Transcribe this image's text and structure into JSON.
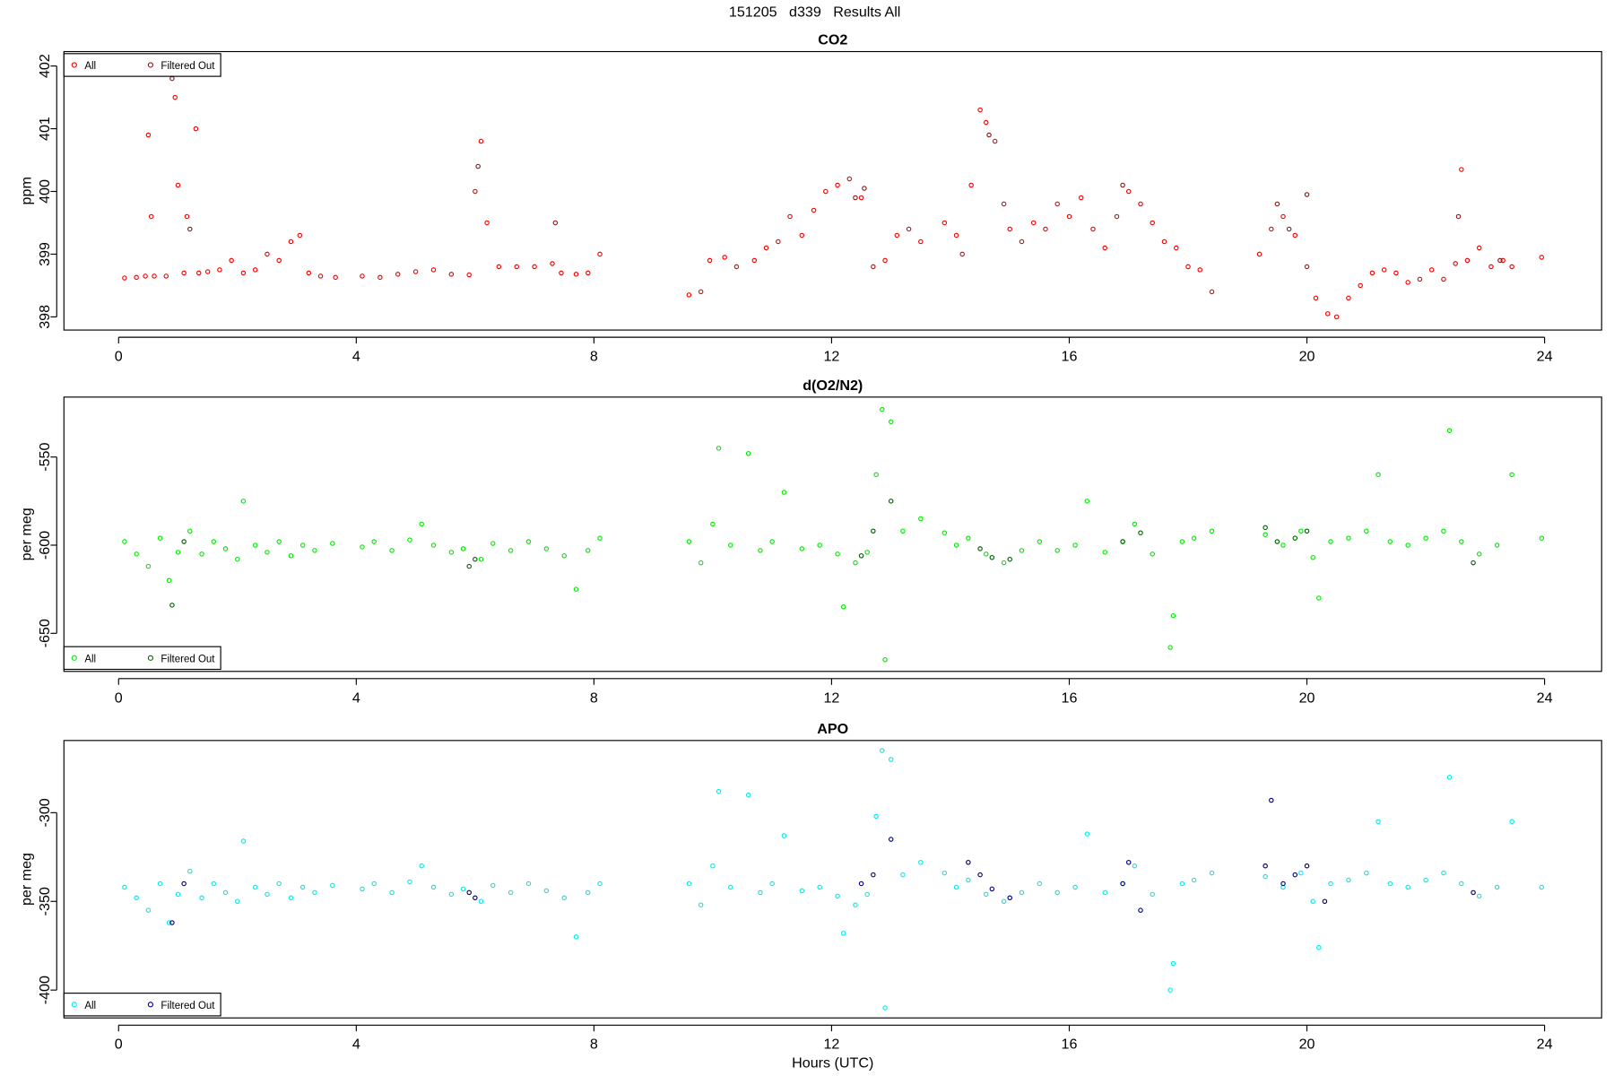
{
  "title": "151205   d339   Results All",
  "chart_data": [
    {
      "type": "scatter",
      "title": "CO2",
      "ylabel": "ppm",
      "legend": "top-left",
      "xlim": [
        -0.92,
        24.96
      ],
      "ylim": [
        397.79,
        402.23
      ],
      "xticks": [
        0,
        4,
        8,
        12,
        16,
        20,
        24
      ],
      "yticks": [
        398,
        399,
        400,
        401,
        402
      ],
      "series": [
        {
          "name": "All",
          "color": "#ff0000",
          "x": [
            0.1,
            0.3,
            0.45,
            0.5,
            0.55,
            0.6,
            0.8,
            0.95,
            1.0,
            1.1,
            1.15,
            1.3,
            1.35,
            1.5,
            1.7,
            1.9,
            2.1,
            2.3,
            2.5,
            2.7,
            2.9,
            3.05,
            3.2,
            3.4,
            3.65,
            4.1,
            4.4,
            4.7,
            5.0,
            5.3,
            5.6,
            5.9,
            6.0,
            6.1,
            6.2,
            6.4,
            6.7,
            7.0,
            7.3,
            7.45,
            7.7,
            7.9,
            8.1,
            9.6,
            9.8,
            9.95,
            10.2,
            10.4,
            10.7,
            10.9,
            11.1,
            11.3,
            11.5,
            11.7,
            11.9,
            12.1,
            12.3,
            12.5,
            12.7,
            12.9,
            13.1,
            13.3,
            13.5,
            13.9,
            14.1,
            14.2,
            14.35,
            14.5,
            14.6,
            14.75,
            14.9,
            15.0,
            15.2,
            15.4,
            15.6,
            15.8,
            16.0,
            16.2,
            16.4,
            16.6,
            16.8,
            17.0,
            17.2,
            17.4,
            17.6,
            17.8,
            18.0,
            18.2,
            18.4,
            19.2,
            19.4,
            19.6,
            19.8,
            20.0,
            20.15,
            20.35,
            20.5,
            20.7,
            20.9,
            21.1,
            21.3,
            21.5,
            21.7,
            21.9,
            22.1,
            22.3,
            22.5,
            22.6,
            22.7,
            22.9,
            23.1,
            23.3,
            23.45,
            23.95
          ],
          "values": [
            398.62,
            398.63,
            398.65,
            400.9,
            399.6,
            398.65,
            398.65,
            401.5,
            400.1,
            398.7,
            399.6,
            401.0,
            398.7,
            398.72,
            398.75,
            398.9,
            398.7,
            398.75,
            399.0,
            398.9,
            399.2,
            399.3,
            398.7,
            398.65,
            398.63,
            398.65,
            398.63,
            398.68,
            398.72,
            398.75,
            398.68,
            398.67,
            400.0,
            400.8,
            399.5,
            398.8,
            398.8,
            398.8,
            398.85,
            398.7,
            398.68,
            398.7,
            399.0,
            398.35,
            398.4,
            398.9,
            398.95,
            398.8,
            398.9,
            399.1,
            399.2,
            399.6,
            399.3,
            399.7,
            400.0,
            400.1,
            400.2,
            399.9,
            398.8,
            398.9,
            399.3,
            399.4,
            399.2,
            399.5,
            399.3,
            399.0,
            400.1,
            401.3,
            401.1,
            400.8,
            399.8,
            399.4,
            399.2,
            399.5,
            399.4,
            399.8,
            399.6,
            399.9,
            399.4,
            399.1,
            399.6,
            400.0,
            399.8,
            399.5,
            399.2,
            399.1,
            398.8,
            398.75,
            398.4,
            399.0,
            399.4,
            399.6,
            399.3,
            398.8,
            398.3,
            398.05,
            398.0,
            398.3,
            398.5,
            398.7,
            398.75,
            398.7,
            398.55,
            398.6,
            398.75,
            398.6,
            398.85,
            400.35,
            398.9,
            399.1,
            398.8,
            398.9,
            398.8,
            398.95
          ]
        },
        {
          "name": "Filtered Out",
          "color": "#8b1a1a",
          "x": [
            0.9,
            1.2,
            6.05,
            7.35,
            12.4,
            12.55,
            14.65,
            16.9,
            19.5,
            19.7,
            20.0,
            22.55,
            23.25
          ],
          "values": [
            401.8,
            399.4,
            400.4,
            399.5,
            399.9,
            400.05,
            400.9,
            400.1,
            399.8,
            399.4,
            399.95,
            399.6,
            398.9
          ]
        }
      ]
    },
    {
      "type": "scatter",
      "title": "d(O2/N2)",
      "ylabel": "per meg",
      "legend": "bottom-left",
      "xlim": [
        -0.92,
        24.96
      ],
      "ylim": [
        -671.6,
        -516
      ],
      "xticks": [
        0,
        4,
        8,
        12,
        16,
        20,
        24
      ],
      "yticks": [
        -650,
        -600,
        -550
      ],
      "series": [
        {
          "name": "All",
          "color": "#00ee00",
          "x": [
            0.1,
            0.3,
            0.5,
            0.7,
            0.85,
            1.0,
            1.2,
            1.4,
            1.6,
            1.8,
            2.0,
            2.1,
            2.3,
            2.5,
            2.7,
            2.9,
            3.1,
            3.3,
            3.6,
            4.1,
            4.3,
            4.6,
            4.9,
            5.1,
            5.3,
            5.6,
            5.8,
            6.1,
            6.3,
            6.6,
            6.9,
            7.2,
            7.5,
            7.7,
            7.9,
            8.1,
            9.6,
            9.8,
            10.0,
            10.1,
            10.3,
            10.6,
            10.8,
            11.0,
            11.2,
            11.5,
            11.8,
            12.1,
            12.2,
            12.4,
            12.6,
            12.75,
            12.85,
            12.9,
            13.0,
            13.2,
            13.5,
            13.9,
            14.1,
            14.3,
            14.6,
            14.9,
            15.2,
            15.5,
            15.8,
            16.1,
            16.3,
            16.6,
            16.9,
            17.1,
            17.4,
            17.7,
            17.75,
            17.9,
            18.1,
            18.4,
            19.3,
            19.6,
            19.9,
            20.1,
            20.2,
            20.4,
            20.7,
            21.0,
            21.2,
            21.4,
            21.7,
            22.0,
            22.3,
            22.4,
            22.6,
            22.9,
            23.2,
            23.45,
            23.95
          ],
          "values": [
            -598,
            -605,
            -612,
            -596,
            -620,
            -604,
            -592,
            -605,
            -598,
            -602,
            -608,
            -575,
            -600,
            -604,
            -598,
            -606,
            -600,
            -603,
            -599,
            -601,
            -598,
            -603,
            -597,
            -588,
            -600,
            -604,
            -602,
            -608,
            -599,
            -603,
            -598,
            -602,
            -606,
            -625,
            -603,
            -596,
            -598,
            -610,
            -588,
            -545,
            -600,
            -548,
            -603,
            -598,
            -570,
            -602,
            -600,
            -605,
            -635,
            -610,
            -604,
            -560,
            -523,
            -665,
            -530,
            -592,
            -585,
            -593,
            -600,
            -596,
            -605,
            -610,
            -603,
            -598,
            -603,
            -600,
            -575,
            -604,
            -598,
            -588,
            -605,
            -658,
            -640,
            -598,
            -596,
            -592,
            -594,
            -600,
            -592,
            -607,
            -630,
            -598,
            -596,
            -592,
            -560,
            -598,
            -600,
            -596,
            -592,
            -535,
            -598,
            -605,
            -600,
            -560,
            -596
          ]
        },
        {
          "name": "Filtered Out",
          "color": "#006400",
          "x": [
            0.9,
            1.1,
            5.9,
            6.0,
            12.5,
            12.7,
            13.0,
            14.5,
            14.7,
            15.0,
            16.9,
            17.2,
            19.3,
            19.5,
            19.8,
            20.0,
            22.8
          ],
          "values": [
            -634,
            -598,
            -612,
            -608,
            -606,
            -592,
            -575,
            -602,
            -607,
            -608,
            -598,
            -593,
            -590,
            -598,
            -596,
            -592,
            -610
          ]
        }
      ]
    },
    {
      "type": "scatter",
      "title": "APO",
      "ylabel": "per meg",
      "xlabel": "Hours (UTC)",
      "legend": "bottom-left",
      "xlim": [
        -0.92,
        24.96
      ],
      "ylim": [
        -415.7,
        -259.3
      ],
      "xticks": [
        0,
        4,
        8,
        12,
        16,
        20,
        24
      ],
      "yticks": [
        -400,
        -350,
        -300
      ],
      "series": [
        {
          "name": "All",
          "color": "#00eeee",
          "x": [
            0.1,
            0.3,
            0.5,
            0.7,
            0.85,
            1.0,
            1.2,
            1.4,
            1.6,
            1.8,
            2.0,
            2.1,
            2.3,
            2.5,
            2.7,
            2.9,
            3.1,
            3.3,
            3.6,
            4.1,
            4.3,
            4.6,
            4.9,
            5.1,
            5.3,
            5.6,
            5.8,
            6.1,
            6.3,
            6.6,
            6.9,
            7.2,
            7.5,
            7.7,
            7.9,
            8.1,
            9.6,
            9.8,
            10.0,
            10.1,
            10.3,
            10.6,
            10.8,
            11.0,
            11.2,
            11.5,
            11.8,
            12.1,
            12.2,
            12.4,
            12.6,
            12.75,
            12.85,
            12.9,
            13.0,
            13.2,
            13.5,
            13.9,
            14.1,
            14.3,
            14.6,
            14.9,
            15.2,
            15.5,
            15.8,
            16.1,
            16.3,
            16.6,
            16.9,
            17.1,
            17.4,
            17.7,
            17.75,
            17.9,
            18.1,
            18.4,
            19.3,
            19.6,
            19.9,
            20.1,
            20.2,
            20.4,
            20.7,
            21.0,
            21.2,
            21.4,
            21.7,
            22.0,
            22.3,
            22.4,
            22.6,
            22.9,
            23.2,
            23.45,
            23.95
          ],
          "values": [
            -342,
            -348,
            -355,
            -340,
            -362,
            -346,
            -333,
            -348,
            -340,
            -345,
            -350,
            -316,
            -342,
            -346,
            -340,
            -348,
            -342,
            -345,
            -341,
            -343,
            -340,
            -345,
            -339,
            -330,
            -342,
            -346,
            -343,
            -350,
            -341,
            -345,
            -340,
            -344,
            -348,
            -370,
            -345,
            -340,
            -340,
            -352,
            -330,
            -288,
            -342,
            -290,
            -345,
            -340,
            -313,
            -344,
            -342,
            -347,
            -368,
            -352,
            -346,
            -302,
            -265,
            -410,
            -270,
            -335,
            -328,
            -334,
            -342,
            -338,
            -346,
            -350,
            -345,
            -340,
            -345,
            -342,
            -312,
            -345,
            -340,
            -330,
            -346,
            -400,
            -385,
            -340,
            -338,
            -334,
            -336,
            -342,
            -334,
            -350,
            -376,
            -340,
            -338,
            -334,
            -305,
            -340,
            -342,
            -338,
            -334,
            -280,
            -340,
            -347,
            -342,
            -305,
            -342
          ]
        },
        {
          "name": "Filtered Out",
          "color": "#00008b",
          "x": [
            0.9,
            1.1,
            5.9,
            6.0,
            12.5,
            12.7,
            13.0,
            14.3,
            14.5,
            14.7,
            15.0,
            16.9,
            17.0,
            17.2,
            19.3,
            19.4,
            19.6,
            19.8,
            20.0,
            20.3,
            22.8
          ],
          "values": [
            -362,
            -340,
            -345,
            -348,
            -340,
            -335,
            -315,
            -328,
            -335,
            -343,
            -348,
            -340,
            -328,
            -355,
            -330,
            -293,
            -340,
            -335,
            -330,
            -350,
            -345
          ]
        }
      ]
    }
  ]
}
